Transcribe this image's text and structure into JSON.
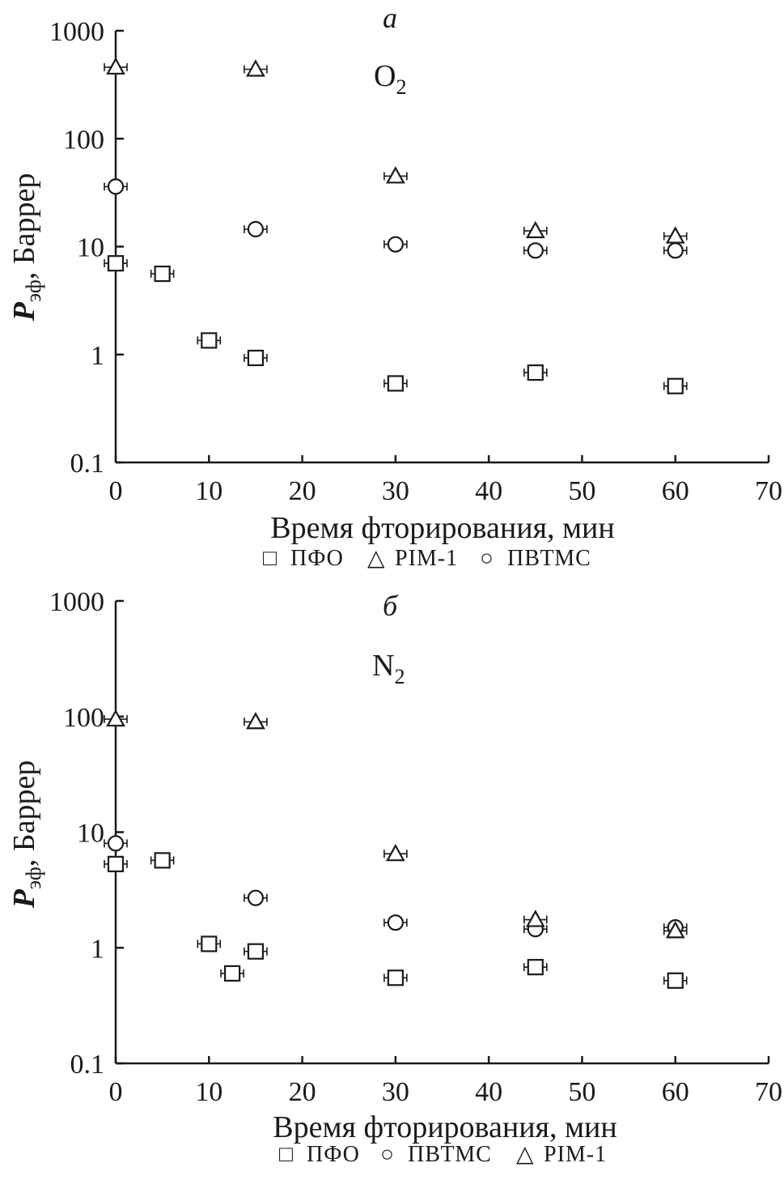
{
  "chart_data": [
    {
      "type": "scatter",
      "panel_letter": "а",
      "gas_label": "O",
      "gas_subscript": "2",
      "xlabel": "Время фторирования, мин",
      "ylabel": "P",
      "ylabel_subscript": "эф",
      "ylabel_suffix": ", Баррер",
      "xlim": [
        0,
        70
      ],
      "ylim": [
        0.1,
        1000
      ],
      "yscale": "log",
      "x_ticks": [
        "0",
        "10",
        "20",
        "30",
        "40",
        "50",
        "60",
        "70"
      ],
      "y_ticks": [
        "0.1",
        "1",
        "10",
        "100",
        "1000"
      ],
      "grid": false,
      "legend_position": "bottom",
      "legend": [
        {
          "symbol": "□",
          "label": "ПФО"
        },
        {
          "symbol": "△",
          "label": "PIM-1"
        },
        {
          "symbol": "○",
          "label": "ПВТМС"
        }
      ],
      "series": [
        {
          "name": "ПФО",
          "marker": "square",
          "x": [
            0,
            5,
            10,
            15,
            30,
            45,
            60
          ],
          "y": [
            7.0,
            5.6,
            1.35,
            0.93,
            0.54,
            0.68,
            0.51
          ]
        },
        {
          "name": "PIM-1",
          "marker": "triangle",
          "x": [
            0,
            15,
            30,
            45,
            60
          ],
          "y": [
            460,
            440,
            45,
            14,
            12.5
          ]
        },
        {
          "name": "ПВТМС",
          "marker": "circle",
          "x": [
            0,
            15,
            30,
            45,
            60
          ],
          "y": [
            36,
            14.5,
            10.5,
            9.2,
            9.2
          ]
        }
      ]
    },
    {
      "type": "scatter",
      "panel_letter": "б",
      "gas_label": "N",
      "gas_subscript": "2",
      "xlabel": "Время фторирования, мин",
      "ylabel": "P",
      "ylabel_subscript": "эф",
      "ylabel_suffix": ", Баррер",
      "xlim": [
        0,
        70
      ],
      "ylim": [
        0.1,
        1000
      ],
      "yscale": "log",
      "x_ticks": [
        "0",
        "10",
        "20",
        "30",
        "40",
        "50",
        "60",
        "70"
      ],
      "y_ticks": [
        "0.1",
        "1",
        "10",
        "100",
        "1000"
      ],
      "grid": false,
      "legend_position": "bottom",
      "legend": [
        {
          "symbol": "□",
          "label": "ПФО"
        },
        {
          "symbol": "○",
          "label": "ПВТМС"
        },
        {
          "symbol": "△",
          "label": "PIM-1"
        }
      ],
      "series": [
        {
          "name": "ПФО",
          "marker": "square",
          "x": [
            0,
            5,
            10,
            12.5,
            15,
            30,
            45,
            60
          ],
          "y": [
            5.3,
            5.7,
            1.08,
            0.6,
            0.93,
            0.55,
            0.68,
            0.52
          ]
        },
        {
          "name": "ПВТМС",
          "marker": "circle",
          "x": [
            0,
            15,
            30,
            45,
            60
          ],
          "y": [
            8.0,
            2.7,
            1.65,
            1.45,
            1.5
          ]
        },
        {
          "name": "PIM-1",
          "marker": "triangle",
          "x": [
            0,
            15,
            30,
            45,
            60
          ],
          "y": [
            95,
            90,
            6.5,
            1.75,
            1.4
          ]
        }
      ]
    }
  ]
}
